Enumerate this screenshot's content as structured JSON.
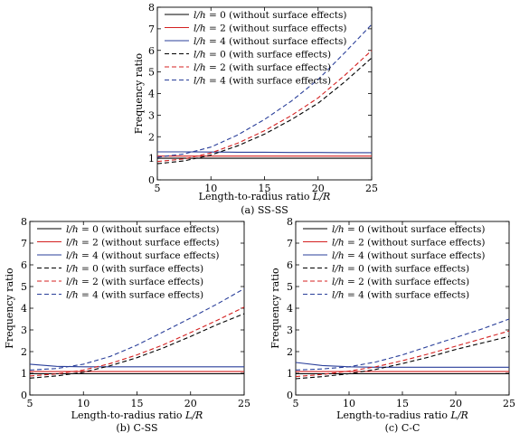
{
  "chart_data": [
    {
      "type": "line",
      "caption": "(a) SS-SS",
      "xlabel": "Length-to-radius ratio L/R",
      "ylabel": "Frequency ratio",
      "xlim": [
        5,
        25
      ],
      "ylim": [
        0,
        8
      ],
      "xticks": [
        5,
        10,
        15,
        20,
        25
      ],
      "yticks": [
        0,
        1,
        2,
        3,
        4,
        5,
        6,
        7,
        8
      ],
      "grid": false,
      "legend_position": "top-left",
      "x": [
        5,
        7.5,
        10,
        12.5,
        15,
        17.5,
        20,
        22.5,
        25
      ],
      "series": [
        {
          "name": "l/h = 0 (without surface effects)",
          "color": "#000000",
          "dash": "solid",
          "values": [
            1,
            1,
            1,
            1,
            1,
            1,
            1,
            1,
            1
          ]
        },
        {
          "name": "l/h = 2 (without surface effects)",
          "color": "#d42020",
          "dash": "solid",
          "values": [
            1.1,
            1.1,
            1.1,
            1.1,
            1.1,
            1.1,
            1.1,
            1.1,
            1.1
          ]
        },
        {
          "name": "l/h = 4 (without surface effects)",
          "color": "#2a3f9a",
          "dash": "solid",
          "values": [
            1.3,
            1.3,
            1.29,
            1.28,
            1.28,
            1.27,
            1.27,
            1.26,
            1.26
          ]
        },
        {
          "name": "l/h = 0 (with surface effects)",
          "color": "#000000",
          "dash": "dashed",
          "values": [
            0.75,
            0.88,
            1.15,
            1.58,
            2.12,
            2.79,
            3.55,
            4.55,
            5.65
          ]
        },
        {
          "name": "l/h = 2 (with surface effects)",
          "color": "#d42020",
          "dash": "dashed",
          "values": [
            0.85,
            0.97,
            1.25,
            1.7,
            2.28,
            2.98,
            3.8,
            4.85,
            6.0
          ]
        },
        {
          "name": "l/h = 4 (with surface effects)",
          "color": "#2a3f9a",
          "dash": "dashed",
          "values": [
            1.05,
            1.2,
            1.52,
            2.08,
            2.8,
            3.65,
            4.65,
            5.9,
            7.2
          ]
        }
      ]
    },
    {
      "type": "line",
      "caption": "(b) C-SS",
      "xlabel": "Length-to-radius ratio L/R",
      "ylabel": "Frequency ratio",
      "xlim": [
        5,
        25
      ],
      "ylim": [
        0,
        8
      ],
      "xticks": [
        5,
        10,
        15,
        20,
        25
      ],
      "yticks": [
        0,
        1,
        2,
        3,
        4,
        5,
        6,
        7,
        8
      ],
      "grid": false,
      "legend_position": "top-left",
      "x": [
        5,
        7.5,
        10,
        12.5,
        15,
        17.5,
        20,
        22.5,
        25
      ],
      "series": [
        {
          "name": "l/h = 0 (without surface effects)",
          "color": "#000000",
          "dash": "solid",
          "values": [
            0.98,
            0.98,
            0.98,
            0.98,
            0.98,
            0.98,
            0.98,
            0.98,
            0.98
          ]
        },
        {
          "name": "l/h = 2 (without surface effects)",
          "color": "#d42020",
          "dash": "solid",
          "values": [
            1.08,
            1.08,
            1.08,
            1.08,
            1.08,
            1.08,
            1.08,
            1.08,
            1.08
          ]
        },
        {
          "name": "l/h = 4 (without surface effects)",
          "color": "#2a3f9a",
          "dash": "solid",
          "values": [
            1.42,
            1.32,
            1.3,
            1.3,
            1.3,
            1.3,
            1.3,
            1.3,
            1.3
          ]
        },
        {
          "name": "l/h = 0 (with surface effects)",
          "color": "#000000",
          "dash": "dashed",
          "values": [
            0.78,
            0.88,
            1.05,
            1.35,
            1.72,
            2.18,
            2.7,
            3.25,
            3.75
          ]
        },
        {
          "name": "l/h = 2 (with surface effects)",
          "color": "#d42020",
          "dash": "dashed",
          "values": [
            0.88,
            0.97,
            1.15,
            1.45,
            1.85,
            2.32,
            2.88,
            3.45,
            4.05
          ]
        },
        {
          "name": "l/h = 4 (with surface effects)",
          "color": "#2a3f9a",
          "dash": "dashed",
          "values": [
            1.15,
            1.22,
            1.42,
            1.78,
            2.3,
            2.92,
            3.55,
            4.2,
            4.9
          ]
        }
      ]
    },
    {
      "type": "line",
      "caption": "(c) C-C",
      "xlabel": "Length-to-radius ratio L/R",
      "ylabel": "Frequency ratio",
      "xlim": [
        5,
        25
      ],
      "ylim": [
        0,
        8
      ],
      "xticks": [
        5,
        10,
        15,
        20,
        25
      ],
      "yticks": [
        0,
        1,
        2,
        3,
        4,
        5,
        6,
        7,
        8
      ],
      "grid": false,
      "legend_position": "top-left",
      "x": [
        5,
        7.5,
        10,
        12.5,
        15,
        17.5,
        20,
        22.5,
        25
      ],
      "series": [
        {
          "name": "l/h = 0 (without surface effects)",
          "color": "#000000",
          "dash": "solid",
          "values": [
            0.98,
            0.98,
            0.98,
            0.98,
            0.98,
            0.98,
            0.98,
            0.98,
            0.98
          ]
        },
        {
          "name": "l/h = 2 (without surface effects)",
          "color": "#d42020",
          "dash": "solid",
          "values": [
            1.08,
            1.08,
            1.08,
            1.08,
            1.08,
            1.08,
            1.08,
            1.08,
            1.08
          ]
        },
        {
          "name": "l/h = 4 (without surface effects)",
          "color": "#2a3f9a",
          "dash": "solid",
          "values": [
            1.5,
            1.36,
            1.3,
            1.28,
            1.28,
            1.28,
            1.28,
            1.28,
            1.28
          ]
        },
        {
          "name": "l/h = 0 (with surface effects)",
          "color": "#000000",
          "dash": "dashed",
          "values": [
            0.75,
            0.85,
            0.98,
            1.18,
            1.45,
            1.75,
            2.1,
            2.4,
            2.7
          ]
        },
        {
          "name": "l/h = 2 (with surface effects)",
          "color": "#d42020",
          "dash": "dashed",
          "values": [
            0.85,
            0.95,
            1.1,
            1.3,
            1.58,
            1.9,
            2.25,
            2.6,
            2.95
          ]
        },
        {
          "name": "l/h = 4 (with surface effects)",
          "color": "#2a3f9a",
          "dash": "dashed",
          "values": [
            1.15,
            1.2,
            1.3,
            1.52,
            1.85,
            2.25,
            2.65,
            3.05,
            3.5
          ]
        }
      ]
    }
  ]
}
